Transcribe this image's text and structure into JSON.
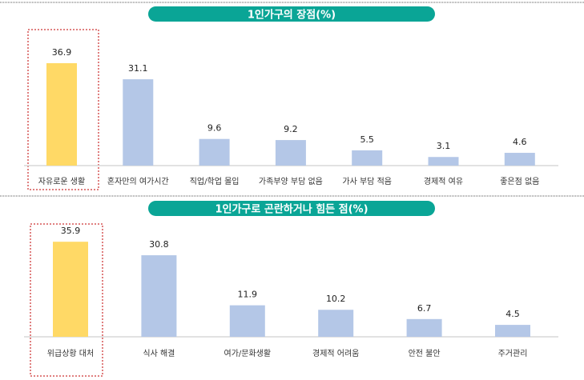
{
  "colors": {
    "title_bg": "#0aa596",
    "highlight_bar": "#ffd966",
    "bar": "#b4c7e7",
    "highlight_box": "#c00000",
    "axis": "#d9d9d9"
  },
  "chart_data": [
    {
      "type": "bar",
      "title": "1인가구의 장점(%)",
      "categories": [
        "자유로운 생활",
        "혼자만의 여가시간",
        "직업/학업 몰입",
        "가족부양 부담 없음",
        "가사 부담 적음",
        "경제적 여유",
        "좋은점 없음"
      ],
      "values": [
        36.9,
        31.1,
        9.6,
        9.2,
        5.5,
        3.1,
        4.6
      ],
      "highlight_index": 0,
      "xlabel": "",
      "ylabel": "",
      "ylim": [
        0,
        40
      ],
      "grid": false
    },
    {
      "type": "bar",
      "title": "1인가구로 곤란하거나 힘든 점(%)",
      "categories": [
        "위급상황 대처",
        "식사 해결",
        "여가/문화생활",
        "경제적 어려움",
        "안전 불안",
        "주거관리"
      ],
      "values": [
        35.9,
        30.8,
        11.9,
        10.2,
        6.7,
        4.5
      ],
      "highlight_index": 0,
      "xlabel": "",
      "ylabel": "",
      "ylim": [
        0,
        40
      ],
      "grid": false
    }
  ]
}
